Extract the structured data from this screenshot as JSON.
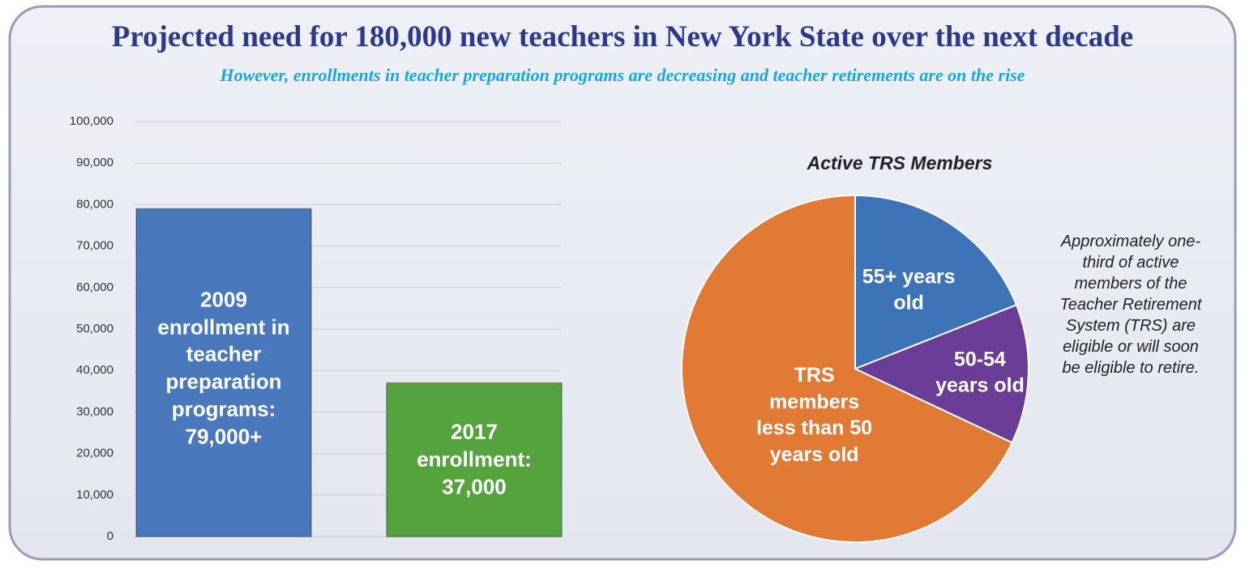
{
  "title": "Projected need for 180,000 new teachers in New York State over the next decade",
  "subtitle": "However, enrollments in teacher preparation programs are decreasing and teacher retirements are on the rise",
  "chart_data": [
    {
      "type": "bar",
      "values": [
        79000,
        37000
      ],
      "value_labels": [
        "2009 enrollment in teacher preparation programs: 79,000+",
        "2017 enrollment: 37,000"
      ],
      "colors": [
        "#4a78bd",
        "#55a33e"
      ],
      "ylim": [
        0,
        100000
      ],
      "yticks": [
        0,
        {
          "value": 10000,
          "label": "10,000"
        },
        {
          "value": 20000,
          "label": "20,000"
        },
        {
          "value": 30000,
          "label": "30,000"
        },
        {
          "value": 40000,
          "label": "40,000"
        },
        {
          "value": 50000,
          "label": "50,000"
        },
        {
          "value": 60000,
          "label": "60,000"
        },
        {
          "value": 70000,
          "label": "70,000"
        },
        {
          "value": 80000,
          "label": "80,000"
        },
        {
          "value": 90000,
          "label": "90,000"
        },
        {
          "value": 100000,
          "label": "100,000"
        }
      ],
      "grid": true
    },
    {
      "type": "pie",
      "title": "Active TRS Members",
      "categories": [
        "55+ years old",
        "50-54 years old",
        "TRS members less than 50 years old"
      ],
      "values": [
        19,
        13,
        68
      ],
      "colors": [
        "#3d74b8",
        "#6a3d96",
        "#e07a35"
      ],
      "annotation": "Approximately one-third of active members of the Teacher Retirement System (TRS) are eligible or will soon be eligible to retire."
    }
  ]
}
